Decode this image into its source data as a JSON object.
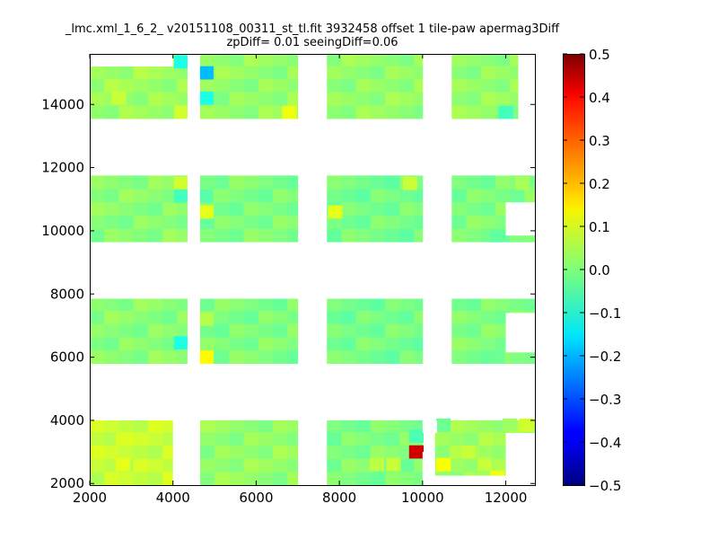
{
  "chart_data": {
    "type": "heatmap",
    "title_line1": "_lmc.xml_1_6_2_ v20151108_00311_st_tl.fit 3932458 offset 1 tile-paw apermag3Diff",
    "title_line2": "zpDiff= 0.01 seeingDiff=0.06",
    "xlim": [
      2000,
      12700
    ],
    "ylim": [
      1950,
      15600
    ],
    "x_ticks": [
      "2000",
      "4000",
      "6000",
      "8000",
      "10000",
      "12000"
    ],
    "x_tick_values": [
      2000,
      4000,
      6000,
      8000,
      10000,
      12000
    ],
    "y_ticks": [
      "2000",
      "4000",
      "6000",
      "8000",
      "10000",
      "12000",
      "14000"
    ],
    "y_tick_values": [
      2000,
      4000,
      6000,
      8000,
      10000,
      12000,
      14000
    ],
    "colorbar": {
      "colormap": "jet",
      "min": -0.5,
      "max": 0.5,
      "ticks": [
        "0.5",
        "0.4",
        "0.3",
        "0.2",
        "0.1",
        "0.0",
        "−0.1",
        "−0.2",
        "−0.3",
        "−0.4",
        "−0.5"
      ],
      "tick_values": [
        0.5,
        0.4,
        0.3,
        0.2,
        0.1,
        0.0,
        -0.1,
        -0.2,
        -0.3,
        -0.4,
        -0.5
      ]
    },
    "cell_size": [
      350,
      420
    ],
    "regions": [
      {
        "x": [
          2000,
          4000
        ],
        "y": [
          1950,
          4000
        ],
        "value": 0.07
      },
      {
        "x": [
          4000,
          4350
        ],
        "y": [
          1950,
          4000
        ],
        "value": null
      },
      {
        "x": [
          4650,
          7000
        ],
        "y": [
          1950,
          4000
        ],
        "value": 0.02
      },
      {
        "x": [
          7700,
          10000
        ],
        "y": [
          1950,
          4000
        ],
        "value": 0.0
      },
      {
        "x": [
          10300,
          12700
        ],
        "y": [
          1950,
          4000
        ],
        "value": 0.03
      },
      {
        "x": [
          2000,
          4350
        ],
        "y": [
          5800,
          7850
        ],
        "value": 0.01
      },
      {
        "x": [
          4650,
          7000
        ],
        "y": [
          5800,
          7850
        ],
        "value": 0.0
      },
      {
        "x": [
          7700,
          10000
        ],
        "y": [
          5800,
          7850
        ],
        "value": -0.01
      },
      {
        "x": [
          10700,
          12700
        ],
        "y": [
          5800,
          7850
        ],
        "value": 0.0
      },
      {
        "x": [
          2000,
          4350
        ],
        "y": [
          9650,
          11750
        ],
        "value": 0.01
      },
      {
        "x": [
          4650,
          7000
        ],
        "y": [
          9650,
          11750
        ],
        "value": 0.0
      },
      {
        "x": [
          7700,
          10000
        ],
        "y": [
          9650,
          11750
        ],
        "value": -0.01
      },
      {
        "x": [
          10700,
          12700
        ],
        "y": [
          9650,
          11750
        ],
        "value": 0.0
      },
      {
        "x": [
          2000,
          4350
        ],
        "y": [
          13550,
          15600
        ],
        "value": 0.03
      },
      {
        "x": [
          4650,
          7000
        ],
        "y": [
          13550,
          15600
        ],
        "value": 0.02
      },
      {
        "x": [
          7700,
          10000
        ],
        "y": [
          13550,
          15600
        ],
        "value": 0.02
      },
      {
        "x": [
          10700,
          12300
        ],
        "y": [
          13550,
          15600
        ],
        "value": 0.02
      }
    ],
    "blank_areas": [
      {
        "x": [
          4000,
          4350
        ],
        "y": [
          1950,
          4000
        ]
      },
      {
        "x": [
          2000,
          4000
        ],
        "y": [
          15200,
          15600
        ]
      },
      {
        "x": [
          4350,
          4650
        ],
        "y": [
          1950,
          15600
        ]
      },
      {
        "x": [
          12300,
          12700
        ],
        "y": [
          13550,
          15600
        ]
      },
      {
        "x": [
          12000,
          12700
        ],
        "y": [
          9850,
          10900
        ]
      },
      {
        "x": [
          12000,
          12700
        ],
        "y": [
          6150,
          7400
        ]
      },
      {
        "x": [
          10000,
          10300
        ],
        "y": [
          1950,
          3000
        ]
      },
      {
        "x": [
          12000,
          12700
        ],
        "y": [
          2200,
          3600
        ]
      },
      {
        "x": [
          10000,
          10350
        ],
        "y": [
          3600,
          4000
        ]
      },
      {
        "x": [
          10300,
          12700
        ],
        "y": [
          1950,
          2250
        ]
      },
      {
        "x": [
          12300,
          12700
        ],
        "y": [
          1950,
          2200
        ]
      }
    ],
    "special_cells": [
      {
        "x": 4800,
        "y": 15000,
        "value": -0.19
      },
      {
        "x": 4800,
        "y": 14200,
        "value": -0.1
      },
      {
        "x": 2700,
        "y": 14200,
        "value": 0.07
      },
      {
        "x": 4200,
        "y": 15350,
        "value": -0.1
      },
      {
        "x": 4200,
        "y": 13750,
        "value": 0.08
      },
      {
        "x": 6800,
        "y": 13750,
        "value": 0.11
      },
      {
        "x": 12000,
        "y": 13750,
        "value": -0.06
      },
      {
        "x": 4200,
        "y": 11500,
        "value": 0.08
      },
      {
        "x": 4200,
        "y": 11100,
        "value": -0.06
      },
      {
        "x": 4800,
        "y": 10600,
        "value": 0.1
      },
      {
        "x": 4800,
        "y": 11100,
        "value": -0.04
      },
      {
        "x": 7900,
        "y": 10600,
        "value": 0.1
      },
      {
        "x": 9700,
        "y": 11500,
        "value": 0.07
      },
      {
        "x": 12400,
        "y": 11500,
        "value": 0.04
      },
      {
        "x": 11800,
        "y": 9850,
        "value": -0.03
      },
      {
        "x": 12300,
        "y": 9850,
        "value": 0.0
      },
      {
        "x": 4200,
        "y": 6450,
        "value": -0.1
      },
      {
        "x": 4800,
        "y": 6000,
        "value": 0.13
      },
      {
        "x": 4800,
        "y": 7200,
        "value": 0.05
      },
      {
        "x": 11800,
        "y": 6000,
        "value": -0.02
      },
      {
        "x": 12300,
        "y": 6000,
        "value": 0.0
      },
      {
        "x": 9850,
        "y": 3000,
        "value": 0.42
      },
      {
        "x": 9850,
        "y": 3500,
        "value": -0.05
      },
      {
        "x": 10500,
        "y": 2600,
        "value": 0.12
      },
      {
        "x": 11100,
        "y": 3000,
        "value": 0.07
      },
      {
        "x": 11500,
        "y": 2600,
        "value": 0.07
      },
      {
        "x": 11800,
        "y": 2200,
        "value": 0.11
      },
      {
        "x": 12100,
        "y": 3850,
        "value": 0.03
      },
      {
        "x": 12500,
        "y": 3850,
        "value": 0.08
      },
      {
        "x": 10500,
        "y": 3850,
        "value": -0.02
      },
      {
        "x": 8900,
        "y": 2600,
        "value": 0.06
      },
      {
        "x": 9300,
        "y": 2600,
        "value": 0.07
      },
      {
        "x": 2800,
        "y": 2600,
        "value": 0.1
      },
      {
        "x": 2800,
        "y": 3400,
        "value": 0.09
      }
    ]
  }
}
